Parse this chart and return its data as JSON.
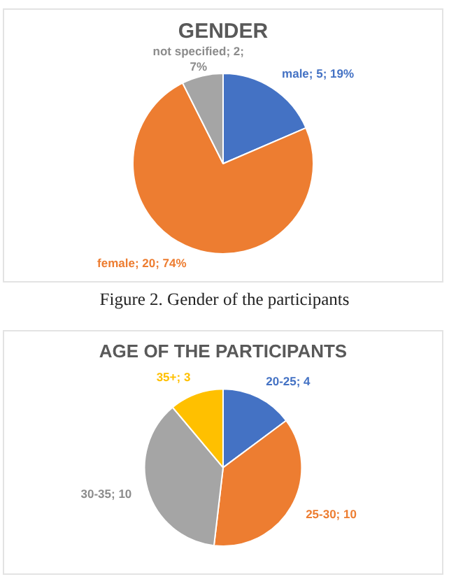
{
  "chart_data": [
    {
      "type": "pie",
      "title": "GENDER",
      "categories": [
        "male; 5; 19%",
        "female; 20; 74%",
        "not specified; 2; 7%"
      ],
      "values": [
        5,
        20,
        2
      ],
      "colors": [
        "#4472c4",
        "#ed7d31",
        "#a5a5a5"
      ],
      "legend": false,
      "annotations": [
        "Figure 2. Gender of the participants"
      ]
    },
    {
      "type": "pie",
      "title": "AGE OF THE PARTICIPANTS",
      "categories": [
        "20-25; 4",
        "25-30; 10",
        "30-35; 10",
        "35+; 3"
      ],
      "values": [
        4,
        10,
        10,
        3
      ],
      "colors": [
        "#4472c4",
        "#ed7d31",
        "#a5a5a5",
        "#ffc000"
      ],
      "legend": false
    }
  ]
}
